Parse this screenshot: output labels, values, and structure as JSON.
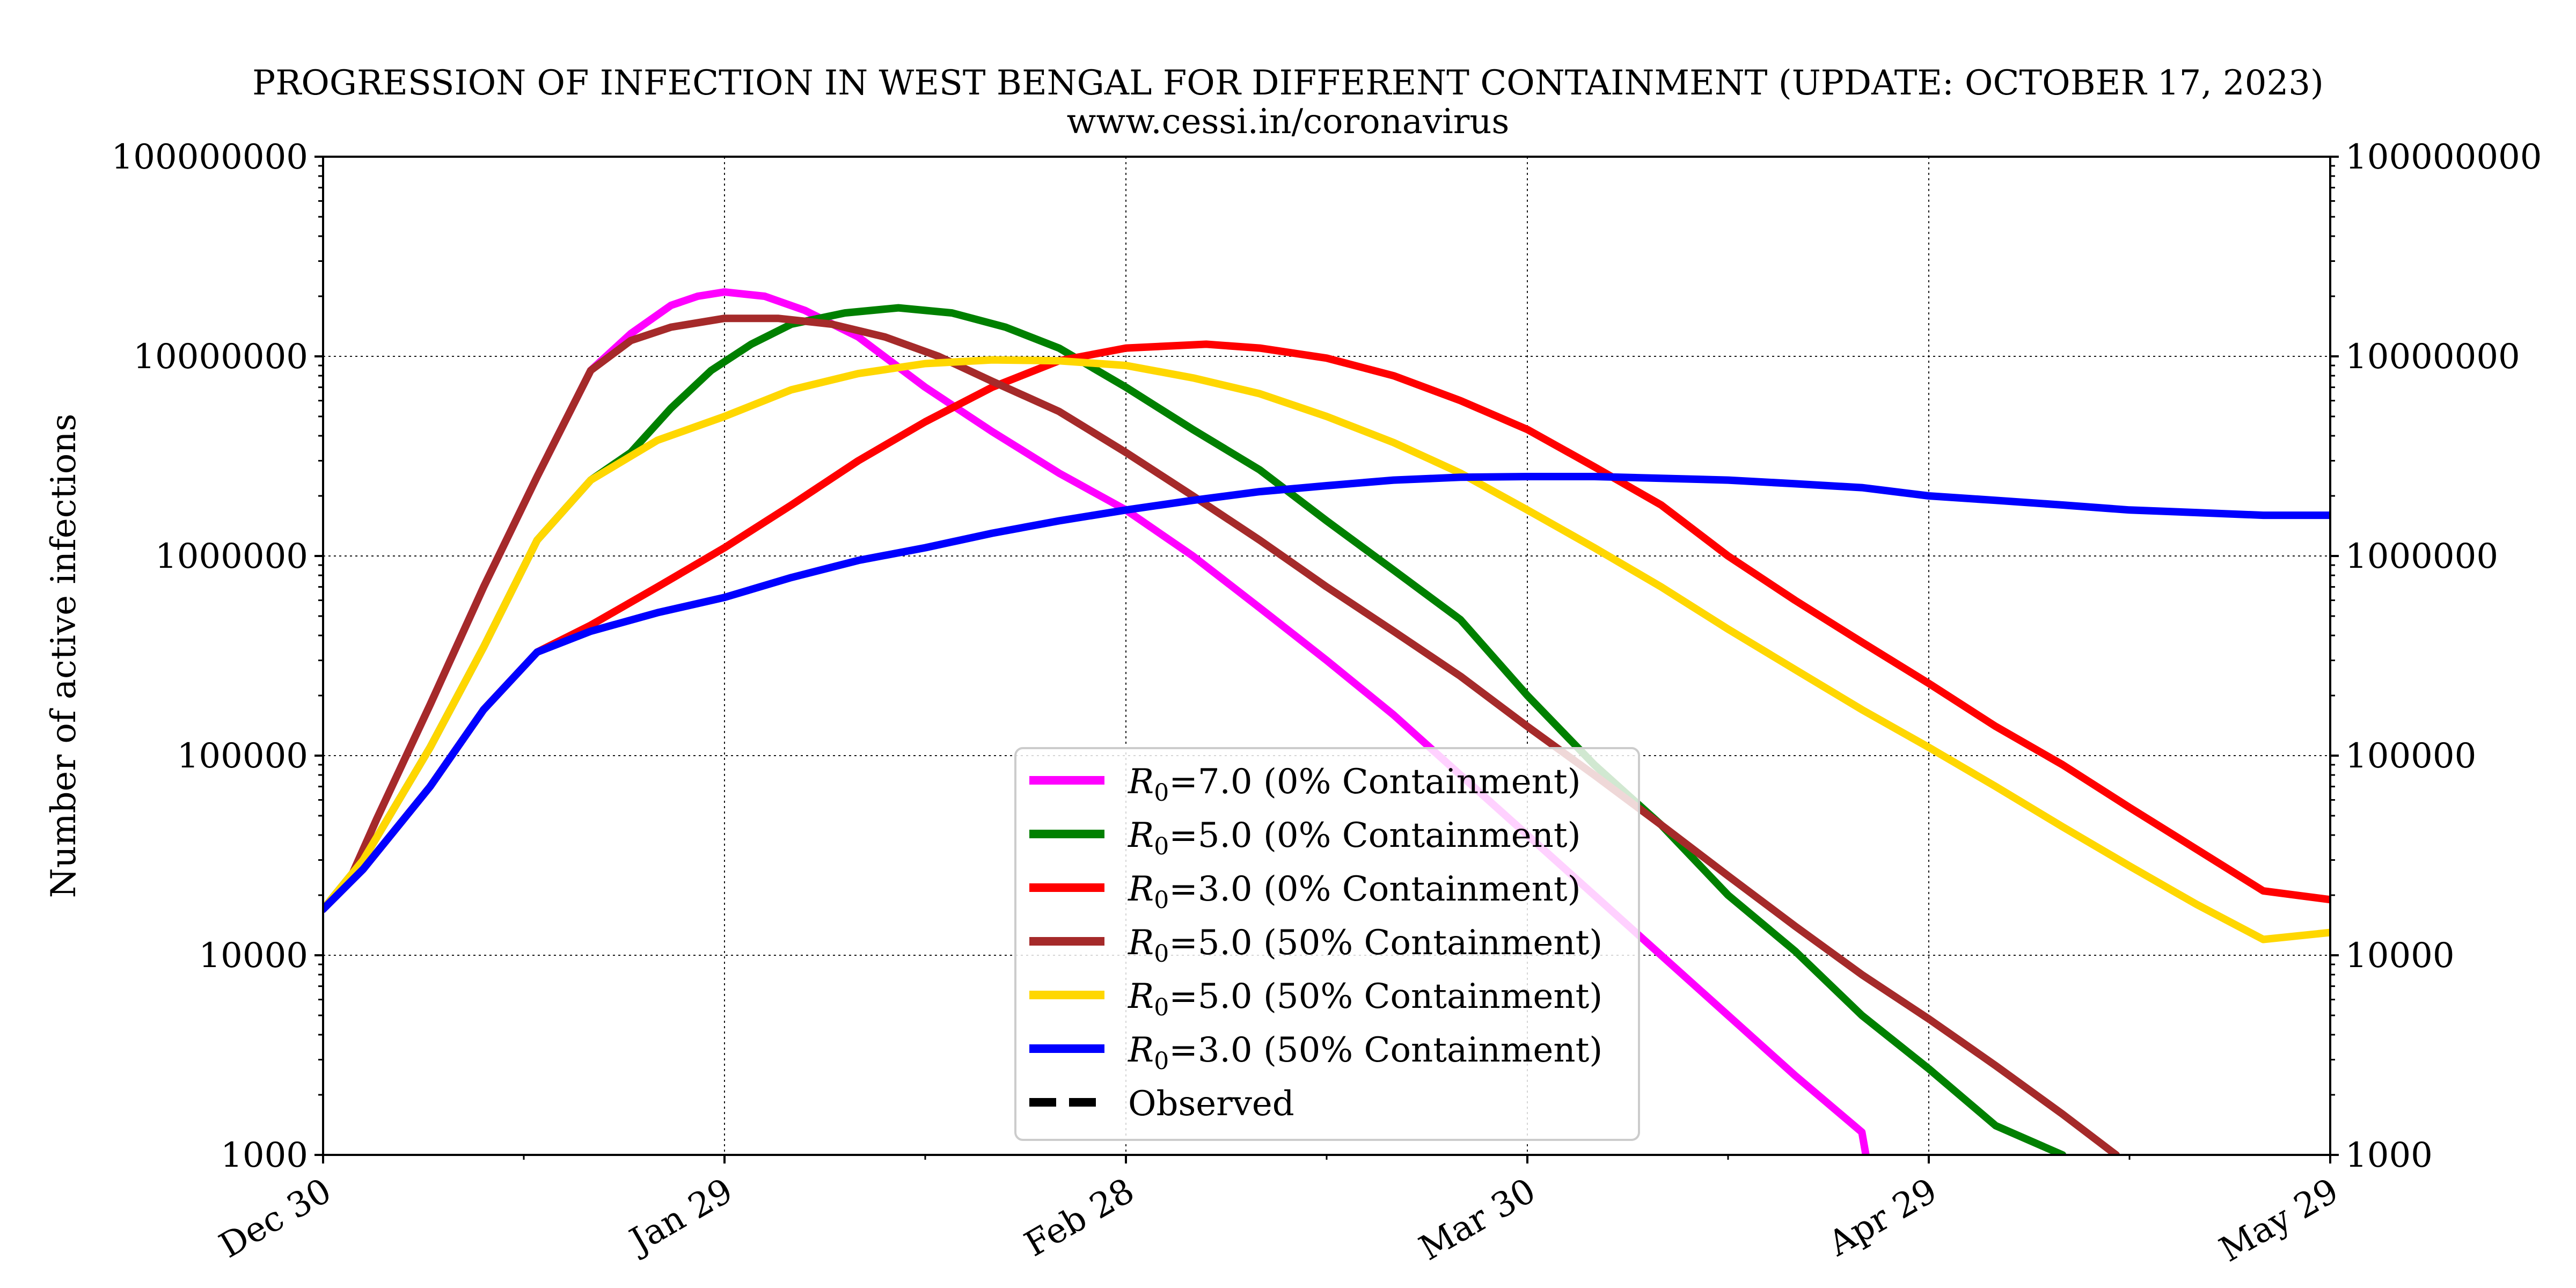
{
  "chart_data": {
    "type": "line",
    "title": "PROGRESSION OF INFECTION IN WEST BENGAL FOR DIFFERENT CONTAINMENT (UPDATE: OCTOBER 17, 2023)",
    "subtitle": "www.cessi.in/coronavirus",
    "xlabel": "",
    "ylabel": "Number of active infections",
    "y_scale": "log",
    "ylim": [
      1000,
      100000000
    ],
    "xlim": [
      0,
      150
    ],
    "x_ticks": [
      {
        "day": 0,
        "label": "Dec 30"
      },
      {
        "day": 30,
        "label": "Jan 29"
      },
      {
        "day": 60,
        "label": "Feb 28"
      },
      {
        "day": 90,
        "label": "Mar 30"
      },
      {
        "day": 120,
        "label": "Apr 29"
      },
      {
        "day": 150,
        "label": "May 29"
      }
    ],
    "y_ticks": [
      1000,
      10000,
      100000,
      1000000,
      10000000,
      100000000
    ],
    "y_tick_labels": [
      "1000",
      "10000",
      "100000",
      "1000000",
      "10000000",
      "100000000"
    ],
    "grid": true,
    "legend_position": "bottom-center",
    "series": [
      {
        "symbol": "R",
        "subscript": "0",
        "label_rest": "=7.0 (0% Containment)",
        "color": "#ff00ff",
        "dashed": false,
        "points": [
          [
            0,
            17000
          ],
          [
            2,
            24000
          ],
          [
            4,
            48000
          ],
          [
            8,
            180000
          ],
          [
            12,
            700000
          ],
          [
            16,
            2500000
          ],
          [
            20,
            8500000
          ],
          [
            23,
            13000000
          ],
          [
            26,
            18000000
          ],
          [
            28,
            20000000
          ],
          [
            30,
            21000000
          ],
          [
            33,
            20000000
          ],
          [
            36,
            17000000
          ],
          [
            40,
            12500000
          ],
          [
            45,
            7000000
          ],
          [
            50,
            4200000
          ],
          [
            55,
            2600000
          ],
          [
            60,
            1700000
          ],
          [
            65,
            1000000
          ],
          [
            70,
            550000
          ],
          [
            75,
            300000
          ],
          [
            80,
            160000
          ],
          [
            85,
            80000
          ],
          [
            90,
            40000
          ],
          [
            95,
            20000
          ],
          [
            100,
            10000
          ],
          [
            105,
            5000
          ],
          [
            110,
            2500
          ],
          [
            115,
            1300
          ],
          [
            115.3,
            1000
          ]
        ]
      },
      {
        "symbol": "R",
        "subscript": "0",
        "label_rest": "=5.0 (0% Containment)",
        "color": "#008000",
        "dashed": false,
        "points": [
          [
            0,
            17000
          ],
          [
            3,
            30000
          ],
          [
            8,
            110000
          ],
          [
            12,
            350000
          ],
          [
            16,
            1200000
          ],
          [
            20,
            2400000
          ],
          [
            23,
            3300000
          ],
          [
            26,
            5500000
          ],
          [
            29,
            8500000
          ],
          [
            32,
            11500000
          ],
          [
            35,
            14500000
          ],
          [
            39,
            16500000
          ],
          [
            43,
            17500000
          ],
          [
            47,
            16500000
          ],
          [
            51,
            14000000
          ],
          [
            55,
            11000000
          ],
          [
            60,
            7000000
          ],
          [
            65,
            4300000
          ],
          [
            70,
            2700000
          ],
          [
            75,
            1500000
          ],
          [
            80,
            850000
          ],
          [
            85,
            480000
          ],
          [
            90,
            200000
          ],
          [
            95,
            90000
          ],
          [
            100,
            45000
          ],
          [
            105,
            20000
          ],
          [
            110,
            10500
          ],
          [
            115,
            5000
          ],
          [
            120,
            2700
          ],
          [
            125,
            1400
          ],
          [
            130,
            1000
          ]
        ]
      },
      {
        "symbol": "R",
        "subscript": "0",
        "label_rest": "=3.0 (0% Containment)",
        "color": "#ff0000",
        "dashed": false,
        "points": [
          [
            0,
            17000
          ],
          [
            3,
            27000
          ],
          [
            8,
            70000
          ],
          [
            12,
            170000
          ],
          [
            16,
            330000
          ],
          [
            20,
            450000
          ],
          [
            25,
            700000
          ],
          [
            30,
            1100000
          ],
          [
            35,
            1800000
          ],
          [
            40,
            3000000
          ],
          [
            45,
            4700000
          ],
          [
            50,
            7000000
          ],
          [
            55,
            9500000
          ],
          [
            60,
            11000000
          ],
          [
            66,
            11500000
          ],
          [
            70,
            11000000
          ],
          [
            75,
            9800000
          ],
          [
            80,
            8000000
          ],
          [
            85,
            6000000
          ],
          [
            90,
            4300000
          ],
          [
            95,
            2800000
          ],
          [
            100,
            1800000
          ],
          [
            105,
            1000000
          ],
          [
            110,
            600000
          ],
          [
            115,
            370000
          ],
          [
            120,
            230000
          ],
          [
            125,
            140000
          ],
          [
            130,
            90000
          ],
          [
            135,
            55000
          ],
          [
            140,
            34000
          ],
          [
            145,
            21000
          ],
          [
            150,
            19000
          ]
        ]
      },
      {
        "symbol": "R",
        "subscript": "0",
        "label_rest": "=5.0 (50% Containment)",
        "color": "#a52a2a",
        "dashed": false,
        "points": [
          [
            0,
            17000
          ],
          [
            2,
            24000
          ],
          [
            4,
            48000
          ],
          [
            8,
            180000
          ],
          [
            12,
            700000
          ],
          [
            16,
            2500000
          ],
          [
            20,
            8500000
          ],
          [
            23,
            12000000
          ],
          [
            26,
            14000000
          ],
          [
            30,
            15500000
          ],
          [
            34,
            15500000
          ],
          [
            38,
            14500000
          ],
          [
            42,
            12500000
          ],
          [
            46,
            10000000
          ],
          [
            50,
            7500000
          ],
          [
            55,
            5300000
          ],
          [
            60,
            3300000
          ],
          [
            65,
            2000000
          ],
          [
            70,
            1200000
          ],
          [
            75,
            700000
          ],
          [
            80,
            420000
          ],
          [
            85,
            250000
          ],
          [
            90,
            140000
          ],
          [
            95,
            80000
          ],
          [
            100,
            45000
          ],
          [
            105,
            25000
          ],
          [
            110,
            14000
          ],
          [
            115,
            8000
          ],
          [
            120,
            4800
          ],
          [
            125,
            2800
          ],
          [
            130,
            1600
          ],
          [
            134,
            1000
          ]
        ]
      },
      {
        "symbol": "R",
        "subscript": "0",
        "label_rest": "=5.0 (50% Containment)",
        "color": "#ffd700",
        "dashed": false,
        "points": [
          [
            0,
            17000
          ],
          [
            3,
            30000
          ],
          [
            8,
            110000
          ],
          [
            12,
            350000
          ],
          [
            16,
            1200000
          ],
          [
            20,
            2400000
          ],
          [
            25,
            3800000
          ],
          [
            30,
            5000000
          ],
          [
            35,
            6800000
          ],
          [
            40,
            8200000
          ],
          [
            45,
            9200000
          ],
          [
            50,
            9600000
          ],
          [
            55,
            9500000
          ],
          [
            60,
            9000000
          ],
          [
            65,
            7800000
          ],
          [
            70,
            6500000
          ],
          [
            75,
            5000000
          ],
          [
            80,
            3700000
          ],
          [
            85,
            2600000
          ],
          [
            90,
            1700000
          ],
          [
            95,
            1100000
          ],
          [
            100,
            700000
          ],
          [
            105,
            430000
          ],
          [
            110,
            270000
          ],
          [
            115,
            170000
          ],
          [
            120,
            110000
          ],
          [
            125,
            70000
          ],
          [
            130,
            44000
          ],
          [
            135,
            28000
          ],
          [
            140,
            18000
          ],
          [
            145,
            12000
          ],
          [
            150,
            13000
          ]
        ]
      },
      {
        "symbol": "R",
        "subscript": "0",
        "label_rest": "=3.0 (50% Containment)",
        "color": "#0000ff",
        "dashed": false,
        "points": [
          [
            0,
            17000
          ],
          [
            3,
            27000
          ],
          [
            8,
            70000
          ],
          [
            12,
            170000
          ],
          [
            16,
            330000
          ],
          [
            20,
            420000
          ],
          [
            25,
            520000
          ],
          [
            30,
            620000
          ],
          [
            35,
            780000
          ],
          [
            40,
            950000
          ],
          [
            45,
            1100000
          ],
          [
            50,
            1300000
          ],
          [
            55,
            1500000
          ],
          [
            60,
            1700000
          ],
          [
            65,
            1900000
          ],
          [
            70,
            2100000
          ],
          [
            75,
            2250000
          ],
          [
            80,
            2400000
          ],
          [
            85,
            2480000
          ],
          [
            90,
            2500000
          ],
          [
            95,
            2500000
          ],
          [
            100,
            2450000
          ],
          [
            105,
            2400000
          ],
          [
            110,
            2300000
          ],
          [
            115,
            2200000
          ],
          [
            120,
            2000000
          ],
          [
            125,
            1900000
          ],
          [
            130,
            1800000
          ],
          [
            135,
            1700000
          ],
          [
            140,
            1650000
          ],
          [
            145,
            1600000
          ],
          [
            150,
            1600000
          ]
        ]
      },
      {
        "label": "Observed",
        "color": "#000000",
        "dashed": true,
        "points": []
      }
    ]
  }
}
